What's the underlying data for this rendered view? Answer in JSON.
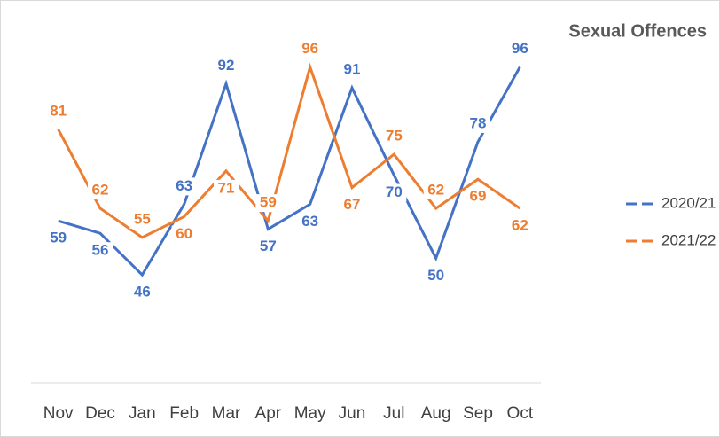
{
  "chart_data": {
    "type": "line",
    "title": "Sexual Offences",
    "categories": [
      "Nov",
      "Dec",
      "Jan",
      "Feb",
      "Mar",
      "Apr",
      "May",
      "Jun",
      "Jul",
      "Aug",
      "Sep",
      "Oct"
    ],
    "series": [
      {
        "name": "2020/21",
        "color": "#4472c4",
        "values": [
          59,
          56,
          46,
          63,
          92,
          57,
          63,
          91,
          70,
          50,
          78,
          96
        ]
      },
      {
        "name": "2021/22",
        "color": "#ed7d31",
        "values": [
          81,
          62,
          55,
          60,
          71,
          59,
          96,
          67,
          75,
          62,
          69,
          62
        ]
      }
    ],
    "ylim": [
      20,
      110
    ],
    "legend": "right"
  }
}
